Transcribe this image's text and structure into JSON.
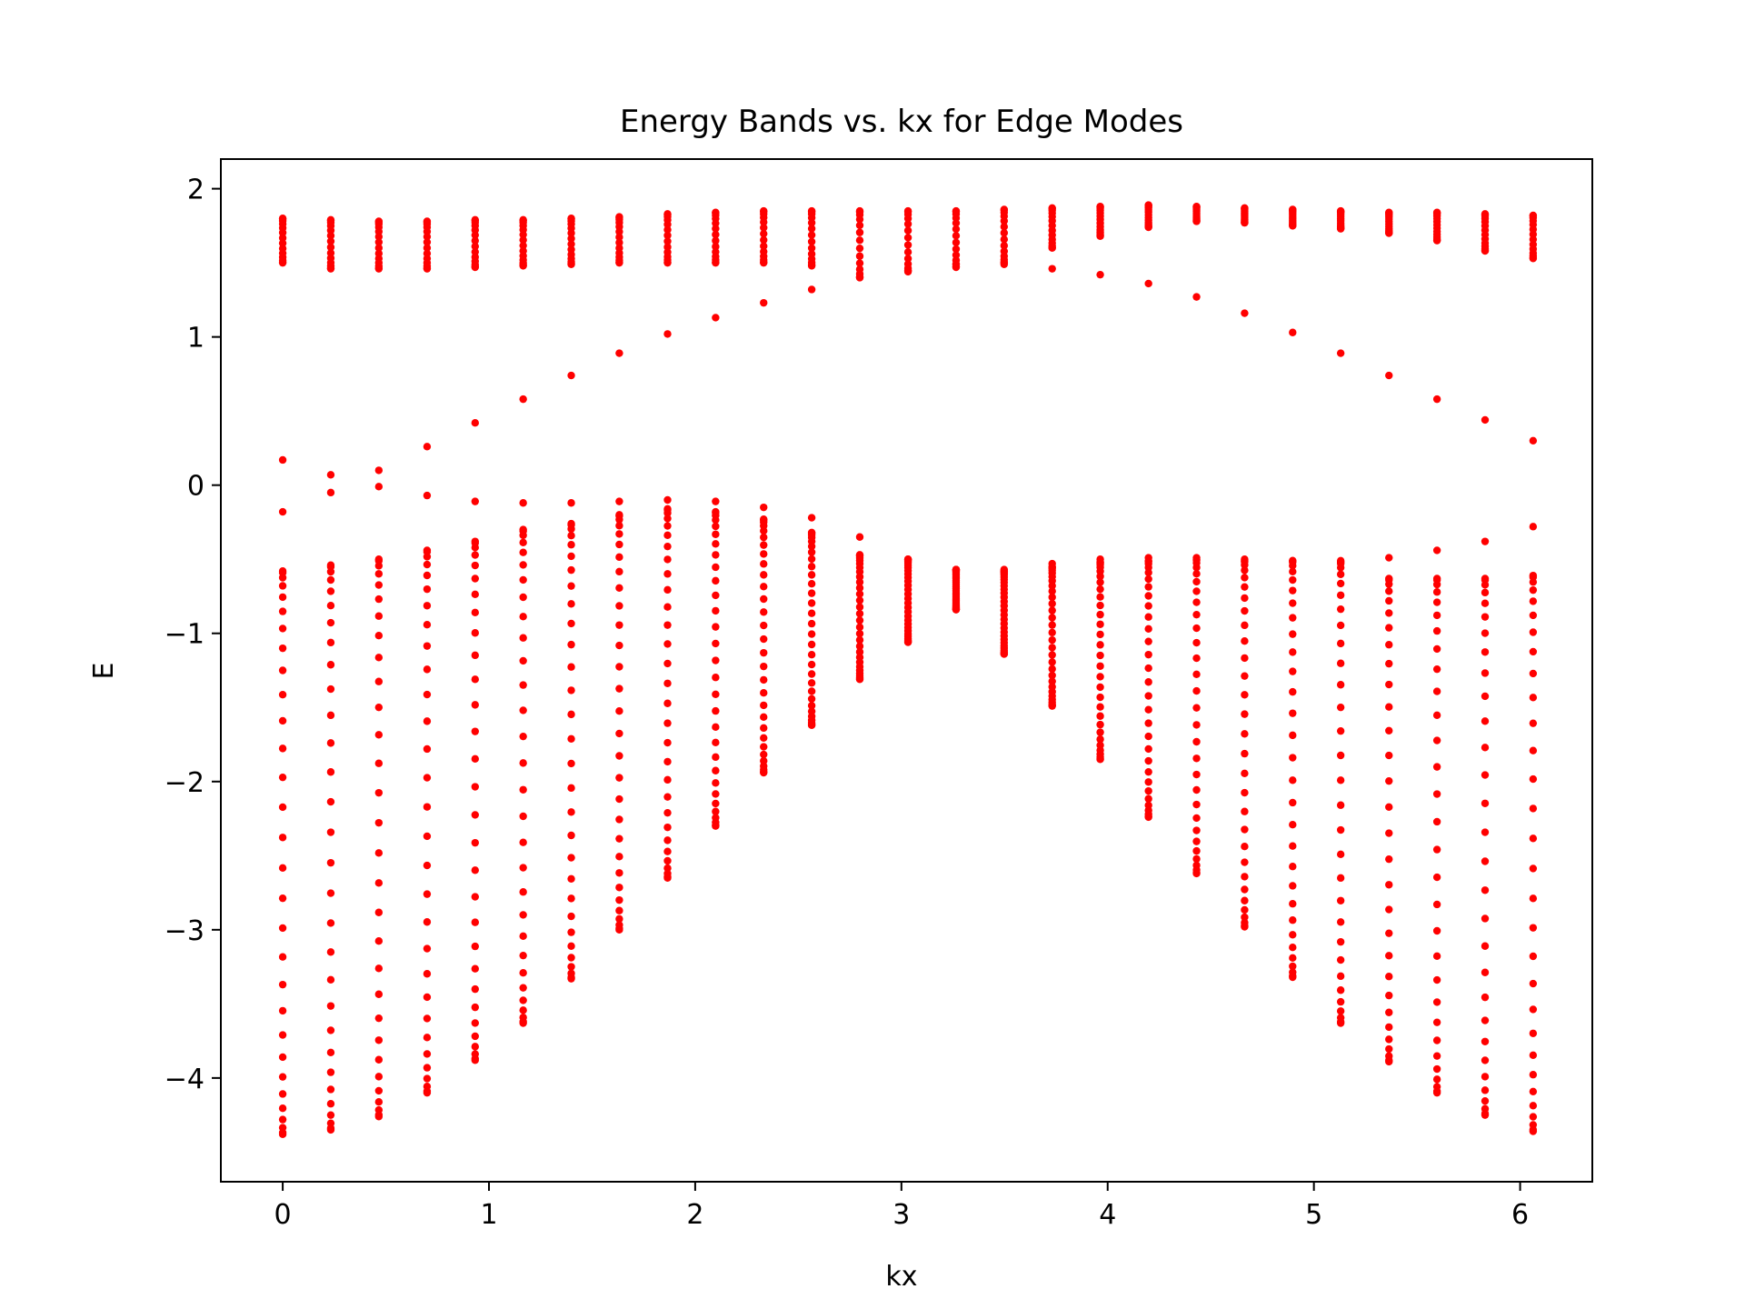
{
  "chart_data": {
    "type": "scatter",
    "title": "Energy Bands vs. kx for Edge Modes",
    "xlabel": "kx",
    "ylabel": "E",
    "xlim": [
      -0.3,
      6.35
    ],
    "ylim": [
      -4.7,
      2.2
    ],
    "xticks": [
      0,
      1,
      2,
      3,
      4,
      5,
      6
    ],
    "yticks": [
      2,
      1,
      0,
      -1,
      -2,
      -3,
      -4
    ],
    "xtick_labels": [
      "0",
      "1",
      "2",
      "3",
      "4",
      "5",
      "6"
    ],
    "ytick_labels": [
      "2",
      "1",
      "0",
      "−1",
      "−2",
      "−3",
      "−4"
    ],
    "grid": false,
    "legend": "none",
    "marker_color": "#ff0000",
    "series": [
      {
        "x": [
          0.0,
          0.233,
          0.466,
          0.7,
          0.933,
          1.166,
          1.399,
          1.632,
          1.866,
          2.099,
          2.332,
          2.565,
          2.798,
          3.032,
          3.265,
          3.498,
          3.731,
          3.964,
          4.198,
          4.431,
          4.664,
          4.897,
          5.13,
          5.364,
          5.597,
          5.83,
          6.063
        ],
        "bulk_upper": [
          [
            1.5,
            1.8
          ],
          [
            1.46,
            1.79
          ],
          [
            1.46,
            1.78
          ],
          [
            1.46,
            1.78
          ],
          [
            1.47,
            1.79
          ],
          [
            1.48,
            1.79
          ],
          [
            1.49,
            1.8
          ],
          [
            1.5,
            1.81
          ],
          [
            1.5,
            1.83
          ],
          [
            1.5,
            1.84
          ],
          [
            1.5,
            1.85
          ],
          [
            1.48,
            1.85
          ],
          [
            1.4,
            1.85
          ],
          [
            1.44,
            1.85
          ],
          [
            1.47,
            1.85
          ],
          [
            1.5,
            1.86
          ],
          [
            1.6,
            1.87
          ],
          [
            1.68,
            1.88
          ],
          [
            1.74,
            1.89
          ],
          [
            1.78,
            1.88
          ],
          [
            1.77,
            1.87
          ],
          [
            1.75,
            1.86
          ],
          [
            1.73,
            1.85
          ],
          [
            1.7,
            1.84
          ],
          [
            1.65,
            1.84
          ],
          [
            1.58,
            1.83
          ],
          [
            1.53,
            1.82
          ]
        ],
        "bulk_lower": [
          [
            -4.38,
            -0.58
          ],
          [
            -4.35,
            -0.54
          ],
          [
            -4.26,
            -0.5
          ],
          [
            -4.1,
            -0.44
          ],
          [
            -3.88,
            -0.38
          ],
          [
            -3.63,
            -0.3
          ],
          [
            -3.33,
            -0.26
          ],
          [
            -3.0,
            -0.2
          ],
          [
            -2.65,
            -0.16
          ],
          [
            -2.3,
            -0.18
          ],
          [
            -1.94,
            -0.23
          ],
          [
            -1.62,
            -0.32
          ],
          [
            -1.31,
            -0.47
          ],
          [
            -1.06,
            -0.5
          ],
          [
            -0.84,
            -0.57
          ],
          [
            -1.14,
            -0.58
          ],
          [
            -1.49,
            -0.55
          ],
          [
            -1.85,
            -0.52
          ],
          [
            -2.24,
            -0.51
          ],
          [
            -2.62,
            -0.5
          ],
          [
            -2.98,
            -0.51
          ],
          [
            -3.32,
            -0.51
          ],
          [
            -3.63,
            -0.52
          ],
          [
            -3.89,
            -0.63
          ],
          [
            -4.1,
            -0.63
          ],
          [
            -4.25,
            -0.63
          ],
          [
            -4.36,
            -0.61
          ]
        ],
        "edge_upper": [
          0.17,
          0.07,
          0.1,
          0.26,
          0.42,
          0.58,
          0.74,
          0.89,
          1.02,
          1.13,
          1.23,
          1.32,
          1.4,
          1.45,
          1.49,
          1.49,
          1.46,
          1.42,
          1.36,
          1.27,
          1.16,
          1.03,
          0.89,
          0.74,
          0.58,
          0.44,
          0.3
        ],
        "edge_lower": [
          -0.18,
          -0.05,
          -0.01,
          -0.07,
          -0.11,
          -0.12,
          -0.12,
          -0.11,
          -0.1,
          -0.11,
          -0.15,
          -0.22,
          -0.35,
          -0.5,
          -0.57,
          -0.57,
          -0.53,
          -0.5,
          -0.49,
          -0.49,
          -0.5,
          -0.51,
          -0.51,
          -0.49,
          -0.44,
          -0.38,
          -0.28
        ]
      }
    ]
  }
}
